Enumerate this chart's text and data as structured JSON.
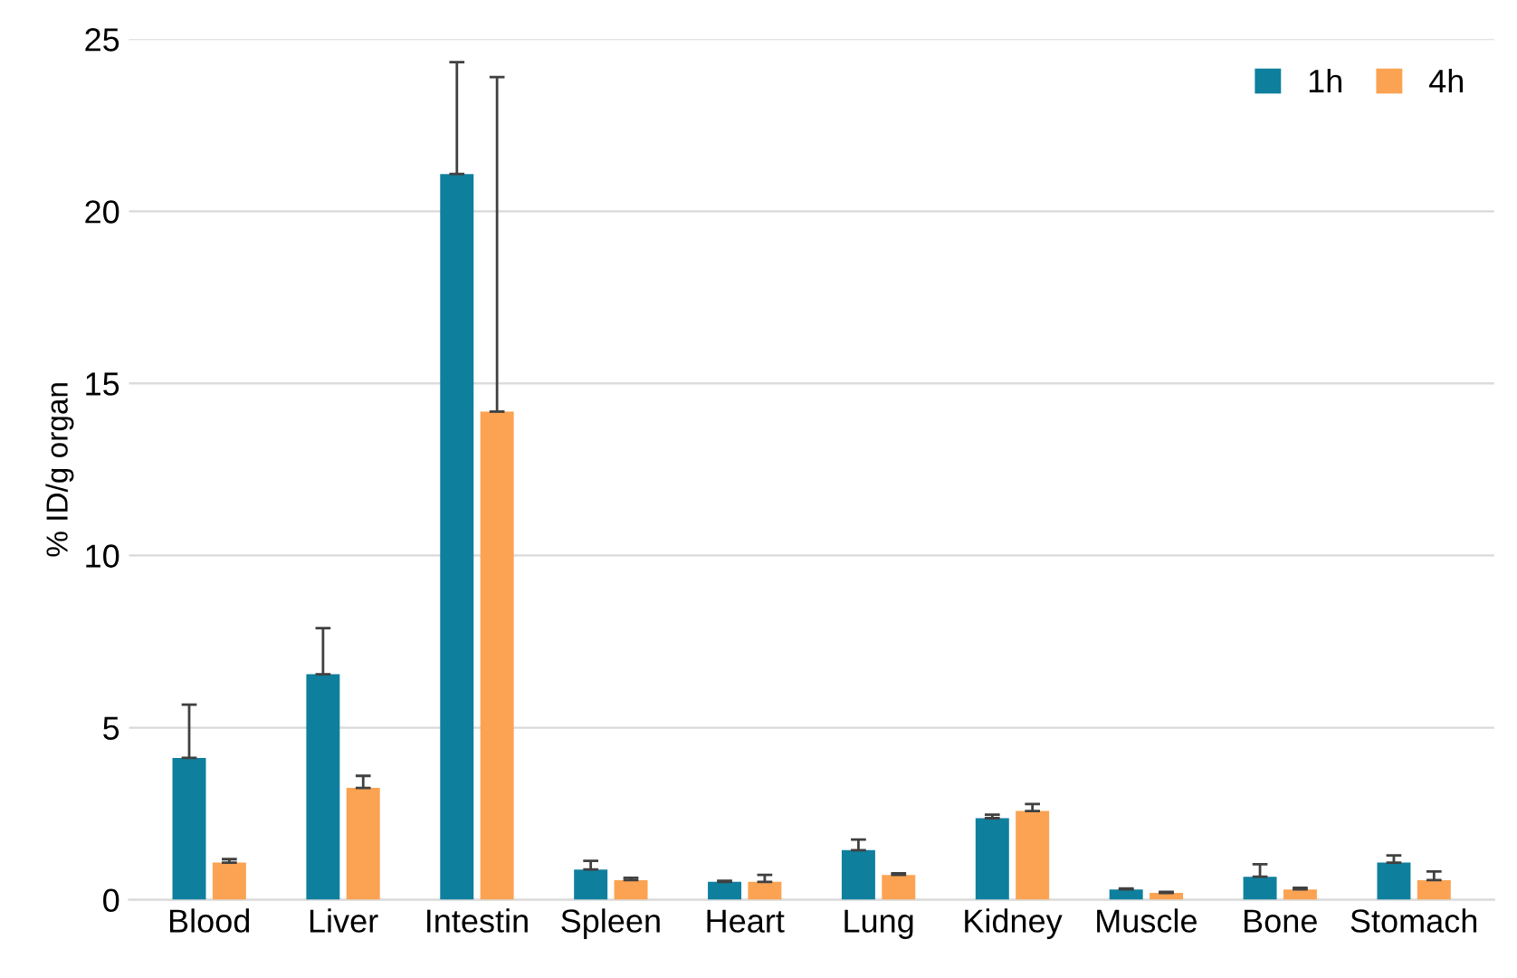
{
  "chart_data": {
    "type": "bar",
    "ylabel": "% ID/g organ",
    "categories": [
      "Blood",
      "Liver",
      "Intestin",
      "Spleen",
      "Heart",
      "Lung",
      "Kidney",
      "Muscle",
      "Bone",
      "Stomach"
    ],
    "series": [
      {
        "name": "1h",
        "color": "#0f7f9e",
        "values": [
          4.12,
          6.55,
          21.08,
          0.88,
          0.52,
          1.44,
          2.37,
          0.3,
          0.67,
          1.08
        ],
        "errors": [
          [
            4.12,
            5.67
          ],
          [
            6.55,
            7.89
          ],
          [
            21.08,
            24.33
          ],
          [
            0.88,
            1.13
          ],
          [
            0.52,
            0.55
          ],
          [
            1.44,
            1.75
          ],
          [
            2.37,
            2.47
          ],
          [
            0.3,
            0.33
          ],
          [
            0.67,
            1.03
          ],
          [
            1.08,
            1.29
          ]
        ]
      },
      {
        "name": "4h",
        "color": "#fba352",
        "values": [
          1.08,
          3.25,
          14.18,
          0.57,
          0.52,
          0.72,
          2.58,
          0.2,
          0.3,
          0.57
        ],
        "errors": [
          [
            1.08,
            1.18
          ],
          [
            3.25,
            3.6
          ],
          [
            14.18,
            23.9
          ],
          [
            0.57,
            0.64
          ],
          [
            0.52,
            0.72
          ],
          [
            0.72,
            0.77
          ],
          [
            2.58,
            2.78
          ],
          [
            0.2,
            0.23
          ],
          [
            0.3,
            0.35
          ],
          [
            0.57,
            0.82
          ]
        ]
      }
    ],
    "ylim": [
      0,
      25
    ],
    "yticks": [
      0,
      5,
      10,
      15,
      20,
      25
    ],
    "grid": "y",
    "legend": "top right"
  }
}
